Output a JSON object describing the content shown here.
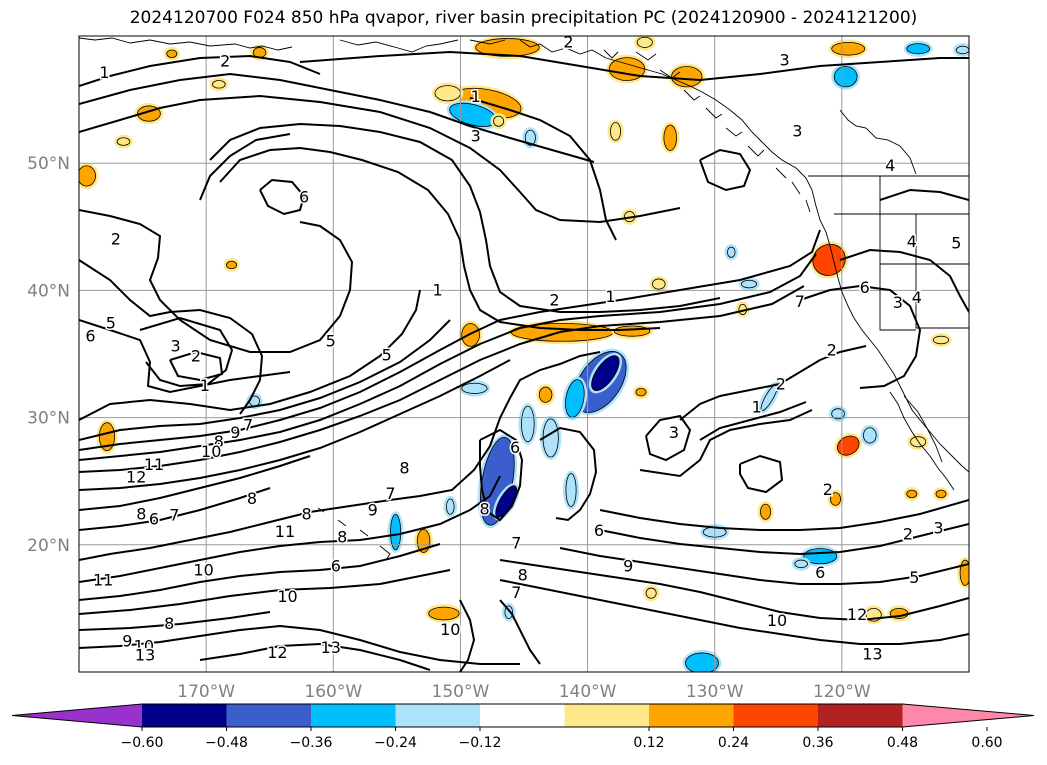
{
  "chart_data": {
    "type": "heatmap",
    "title": "2024120700 F024 850 hPa qvapor, river basin precipitation PC (2024120900 - 2024121200)",
    "map": {
      "lon_range": [
        -180,
        -110
      ],
      "lat_range": [
        10,
        60
      ],
      "lat_ticks": [
        "20°N",
        "30°N",
        "40°N",
        "50°N"
      ],
      "lat_tick_values": [
        20,
        30,
        40,
        50
      ],
      "lon_ticks": [
        "170°W",
        "160°W",
        "150°W",
        "140°W",
        "130°W",
        "120°W"
      ],
      "lon_tick_values": [
        -170,
        -160,
        -150,
        -140,
        -130,
        -120
      ],
      "grid": true,
      "coastlines": true
    },
    "contours": {
      "field": "850 hPa qvapor",
      "color": "#000000",
      "labels": [
        {
          "text": "1",
          "lon": -178,
          "lat": 56.7
        },
        {
          "text": "2",
          "lon": -168.5,
          "lat": 57.6
        },
        {
          "text": "2",
          "lon": -141.5,
          "lat": 59.1
        },
        {
          "text": "3",
          "lon": -124.5,
          "lat": 57.7
        },
        {
          "text": "1",
          "lon": -148.8,
          "lat": 54.8
        },
        {
          "text": "3",
          "lon": -148.8,
          "lat": 51.7
        },
        {
          "text": "3",
          "lon": -123.5,
          "lat": 52.1
        },
        {
          "text": "6",
          "lon": -162.3,
          "lat": 46.9
        },
        {
          "text": "2",
          "lon": -177.1,
          "lat": 43.6
        },
        {
          "text": "4",
          "lon": -116.2,
          "lat": 49.4
        },
        {
          "text": "4",
          "lon": -114.5,
          "lat": 43.4
        },
        {
          "text": "5",
          "lon": -111.0,
          "lat": 43.3
        },
        {
          "text": "1",
          "lon": -151.8,
          "lat": 39.6
        },
        {
          "text": "2",
          "lon": -142.6,
          "lat": 38.8
        },
        {
          "text": "1",
          "lon": -138.2,
          "lat": 39.1
        },
        {
          "text": "7",
          "lon": -123.3,
          "lat": 38.7
        },
        {
          "text": "6",
          "lon": -118.2,
          "lat": 39.8
        },
        {
          "text": "3",
          "lon": -115.6,
          "lat": 38.6
        },
        {
          "text": "4",
          "lon": -114.1,
          "lat": 39.0
        },
        {
          "text": "6",
          "lon": -179.1,
          "lat": 36.0
        },
        {
          "text": "5",
          "lon": -177.5,
          "lat": 37.0
        },
        {
          "text": "3",
          "lon": -172.4,
          "lat": 35.2
        },
        {
          "text": "2",
          "lon": -170.8,
          "lat": 34.4
        },
        {
          "text": "5",
          "lon": -160.2,
          "lat": 35.6
        },
        {
          "text": "5",
          "lon": -155.8,
          "lat": 34.5
        },
        {
          "text": "1",
          "lon": -170.1,
          "lat": 32.1
        },
        {
          "text": "2",
          "lon": -120.8,
          "lat": 34.9
        },
        {
          "text": "2",
          "lon": -124.8,
          "lat": 32.2
        },
        {
          "text": "1",
          "lon": -126.7,
          "lat": 30.4
        },
        {
          "text": "3",
          "lon": -133.2,
          "lat": 28.4
        },
        {
          "text": "9",
          "lon": -167.7,
          "lat": 28.4
        },
        {
          "text": "8",
          "lon": -169.0,
          "lat": 27.7
        },
        {
          "text": "10",
          "lon": -169.6,
          "lat": 26.9
        },
        {
          "text": "7",
          "lon": -166.7,
          "lat": 29.0
        },
        {
          "text": "11",
          "lon": -174.1,
          "lat": 25.9
        },
        {
          "text": "12",
          "lon": -175.5,
          "lat": 24.9
        },
        {
          "text": "8",
          "lon": -166.4,
          "lat": 23.2
        },
        {
          "text": "8",
          "lon": -154.4,
          "lat": 25.6
        },
        {
          "text": "8",
          "lon": -162.1,
          "lat": 22.0
        },
        {
          "text": "8",
          "lon": -175.1,
          "lat": 22.0
        },
        {
          "text": "6",
          "lon": -174.1,
          "lat": 21.6
        },
        {
          "text": "7",
          "lon": -172.5,
          "lat": 21.9
        },
        {
          "text": "6",
          "lon": -145.7,
          "lat": 27.2
        },
        {
          "text": "2",
          "lon": -121.1,
          "lat": 23.9
        },
        {
          "text": "7",
          "lon": -155.5,
          "lat": 23.6
        },
        {
          "text": "9",
          "lon": -156.9,
          "lat": 22.3
        },
        {
          "text": "8",
          "lon": -148.1,
          "lat": 22.4
        },
        {
          "text": "11",
          "lon": -163.8,
          "lat": 20.6
        },
        {
          "text": "8",
          "lon": -159.3,
          "lat": 20.2
        },
        {
          "text": "6",
          "lon": -139.1,
          "lat": 20.7
        },
        {
          "text": "7",
          "lon": -145.6,
          "lat": 19.7
        },
        {
          "text": "2",
          "lon": -114.8,
          "lat": 20.4
        },
        {
          "text": "3",
          "lon": -112.4,
          "lat": 20.9
        },
        {
          "text": "6",
          "lon": -159.8,
          "lat": 17.9
        },
        {
          "text": "10",
          "lon": -170.2,
          "lat": 17.6
        },
        {
          "text": "11",
          "lon": -178.1,
          "lat": 16.8
        },
        {
          "text": "9",
          "lon": -136.8,
          "lat": 17.9
        },
        {
          "text": "6",
          "lon": -121.7,
          "lat": 17.4
        },
        {
          "text": "5",
          "lon": -114.3,
          "lat": 17.0
        },
        {
          "text": "8",
          "lon": -145.1,
          "lat": 17.2
        },
        {
          "text": "7",
          "lon": -145.6,
          "lat": 15.8
        },
        {
          "text": "10",
          "lon": -163.6,
          "lat": 15.5
        },
        {
          "text": "10",
          "lon": -125.1,
          "lat": 13.6
        },
        {
          "text": "12",
          "lon": -118.8,
          "lat": 14.1
        },
        {
          "text": "8",
          "lon": -172.9,
          "lat": 13.4
        },
        {
          "text": "10",
          "lon": -150.8,
          "lat": 12.9
        },
        {
          "text": "9",
          "lon": -176.2,
          "lat": 12.0
        },
        {
          "text": "10",
          "lon": -174.9,
          "lat": 11.6
        },
        {
          "text": "13",
          "lon": -174.8,
          "lat": 10.9
        },
        {
          "text": "12",
          "lon": -164.4,
          "lat": 11.1
        },
        {
          "text": "13",
          "lon": -160.2,
          "lat": 11.5
        },
        {
          "text": "13",
          "lon": -117.6,
          "lat": 11.0
        }
      ]
    },
    "shading": {
      "field": "river basin precipitation PC",
      "colorbar": {
        "ticks": [
          "−0.60",
          "−0.48",
          "−0.36",
          "−0.24",
          "−0.12",
          "0.12",
          "0.24",
          "0.36",
          "0.48",
          "0.60"
        ],
        "levels": [
          -0.6,
          -0.48,
          -0.36,
          -0.24,
          -0.12,
          0.12,
          0.24,
          0.36,
          0.48,
          0.6
        ],
        "colors": [
          "#9932cc",
          "#00008b",
          "#3a5fcd",
          "#00bfff",
          "#aee2fb",
          "#ffffff",
          "#ffe88a",
          "#ffa500",
          "#ff4500",
          "#b22222",
          "#ff88aa"
        ],
        "extend": "both"
      },
      "blobs": [
        {
          "lon": -148,
          "lat": 54.7,
          "rx": 2.8,
          "ry": 1.1,
          "value": 0.3,
          "rot": 10
        },
        {
          "lon": -149,
          "lat": 53.8,
          "rx": 1.9,
          "ry": 0.8,
          "value": -0.3,
          "rot": 15
        },
        {
          "lon": -151,
          "lat": 55.5,
          "rx": 1.0,
          "ry": 0.6,
          "value": 0.15,
          "rot": 0
        },
        {
          "lon": -147,
          "lat": 53.3,
          "rx": 0.4,
          "ry": 0.4,
          "value": 0.15,
          "rot": 0
        },
        {
          "lon": -144.5,
          "lat": 52.0,
          "rx": 0.4,
          "ry": 0.6,
          "value": -0.15,
          "rot": 0
        },
        {
          "lon": -174.5,
          "lat": 53.9,
          "rx": 0.9,
          "ry": 0.6,
          "value": 0.3,
          "rot": 0
        },
        {
          "lon": -176.5,
          "lat": 51.7,
          "rx": 0.5,
          "ry": 0.3,
          "value": 0.15,
          "rot": 0
        },
        {
          "lon": -179.4,
          "lat": 49.0,
          "rx": 0.7,
          "ry": 0.8,
          "value": 0.33,
          "rot": 0
        },
        {
          "lon": -165.8,
          "lat": 58.7,
          "rx": 0.5,
          "ry": 0.4,
          "value": 0.3,
          "rot": 0
        },
        {
          "lon": -146.3,
          "lat": 59.1,
          "rx": 2.5,
          "ry": 0.7,
          "value": 0.3,
          "rot": 0
        },
        {
          "lon": -136.9,
          "lat": 57.4,
          "rx": 1.4,
          "ry": 0.9,
          "value": 0.33,
          "rot": 0
        },
        {
          "lon": -132.2,
          "lat": 56.8,
          "rx": 1.2,
          "ry": 0.8,
          "value": 0.3,
          "rot": 0
        },
        {
          "lon": -135.5,
          "lat": 59.5,
          "rx": 0.6,
          "ry": 0.4,
          "value": 0.15,
          "rot": 0
        },
        {
          "lon": -119.5,
          "lat": 59.0,
          "rx": 1.3,
          "ry": 0.5,
          "value": 0.3,
          "rot": 0
        },
        {
          "lon": -114,
          "lat": 59.0,
          "rx": 0.9,
          "ry": 0.4,
          "value": -0.3,
          "rot": 0
        },
        {
          "lon": -110.5,
          "lat": 58.9,
          "rx": 0.5,
          "ry": 0.3,
          "value": -0.15,
          "rot": 0
        },
        {
          "lon": -119.7,
          "lat": 56.8,
          "rx": 0.9,
          "ry": 0.8,
          "value": -0.3,
          "rot": 0
        },
        {
          "lon": -133.5,
          "lat": 52.0,
          "rx": 0.5,
          "ry": 1.0,
          "value": 0.3,
          "rot": 0
        },
        {
          "lon": -137.8,
          "lat": 52.5,
          "rx": 0.4,
          "ry": 0.7,
          "value": 0.15,
          "rot": 0
        },
        {
          "lon": -136.7,
          "lat": 45.8,
          "rx": 0.4,
          "ry": 0.4,
          "value": 0.15,
          "rot": 0
        },
        {
          "lon": -128.7,
          "lat": 43.0,
          "rx": 0.3,
          "ry": 0.4,
          "value": -0.15,
          "rot": 0
        },
        {
          "lon": -121.0,
          "lat": 42.4,
          "rx": 1.3,
          "ry": 1.2,
          "value": 0.4,
          "rot": -30
        },
        {
          "lon": -134.4,
          "lat": 40.5,
          "rx": 0.5,
          "ry": 0.4,
          "value": 0.2,
          "rot": 0
        },
        {
          "lon": -127.3,
          "lat": 40.5,
          "rx": 0.6,
          "ry": 0.3,
          "value": -0.2,
          "rot": 0
        },
        {
          "lon": -127.8,
          "lat": 38.5,
          "rx": 0.3,
          "ry": 0.4,
          "value": 0.15,
          "rot": 0
        },
        {
          "lon": -168,
          "lat": 42.0,
          "rx": 0.4,
          "ry": 0.3,
          "value": 0.25,
          "rot": 0
        },
        {
          "lon": -142.0,
          "lat": 36.7,
          "rx": 4.0,
          "ry": 0.7,
          "value": 0.3,
          "rot": 0
        },
        {
          "lon": -136.5,
          "lat": 36.8,
          "rx": 1.4,
          "ry": 0.4,
          "value": 0.25,
          "rot": 0
        },
        {
          "lon": -149.2,
          "lat": 36.5,
          "rx": 0.7,
          "ry": 0.9,
          "value": 0.25,
          "rot": 0
        },
        {
          "lon": -112.2,
          "lat": 36.1,
          "rx": 0.6,
          "ry": 0.3,
          "value": 0.2,
          "rot": 0
        },
        {
          "lon": -139.0,
          "lat": 32.8,
          "rx": 1.6,
          "ry": 2.7,
          "value": -0.45,
          "rot": 35
        },
        {
          "lon": -138.6,
          "lat": 33.5,
          "rx": 0.7,
          "ry": 1.6,
          "value": -0.55,
          "rot": 35
        },
        {
          "lon": -141.0,
          "lat": 31.5,
          "rx": 0.7,
          "ry": 1.5,
          "value": -0.3,
          "rot": 10
        },
        {
          "lon": -143.3,
          "lat": 31.8,
          "rx": 0.5,
          "ry": 0.6,
          "value": 0.3,
          "rot": 0
        },
        {
          "lon": -144.7,
          "lat": 29.5,
          "rx": 0.5,
          "ry": 1.4,
          "value": -0.15,
          "rot": 0
        },
        {
          "lon": -142.9,
          "lat": 28.4,
          "rx": 0.6,
          "ry": 1.5,
          "value": -0.2,
          "rot": 0
        },
        {
          "lon": -141.3,
          "lat": 24.3,
          "rx": 0.4,
          "ry": 1.3,
          "value": -0.2,
          "rot": 0
        },
        {
          "lon": -147.1,
          "lat": 25.0,
          "rx": 1.2,
          "ry": 3.5,
          "value": -0.42,
          "rot": 10
        },
        {
          "lon": -146.4,
          "lat": 23.4,
          "rx": 0.5,
          "ry": 1.4,
          "value": -0.55,
          "rot": 30
        },
        {
          "lon": -150.8,
          "lat": 23.0,
          "rx": 0.3,
          "ry": 0.6,
          "value": -0.2,
          "rot": 0
        },
        {
          "lon": -155.1,
          "lat": 21.0,
          "rx": 0.4,
          "ry": 1.4,
          "value": -0.3,
          "rot": 0
        },
        {
          "lon": -152.9,
          "lat": 20.3,
          "rx": 0.5,
          "ry": 0.9,
          "value": 0.3,
          "rot": 0
        },
        {
          "lon": -135.8,
          "lat": 32.0,
          "rx": 0.4,
          "ry": 0.3,
          "value": 0.25,
          "rot": 0
        },
        {
          "lon": -148.9,
          "lat": 32.3,
          "rx": 1.0,
          "ry": 0.4,
          "value": -0.2,
          "rot": 0
        },
        {
          "lon": -177.8,
          "lat": 28.5,
          "rx": 0.6,
          "ry": 1.1,
          "value": 0.35,
          "rot": 0
        },
        {
          "lon": -166.2,
          "lat": 31.3,
          "rx": 0.4,
          "ry": 0.4,
          "value": -0.15,
          "rot": 0
        },
        {
          "lon": -120.3,
          "lat": 30.3,
          "rx": 0.5,
          "ry": 0.4,
          "value": -0.2,
          "rot": 0
        },
        {
          "lon": -117.8,
          "lat": 28.6,
          "rx": 0.5,
          "ry": 0.6,
          "value": -0.15,
          "rot": 0
        },
        {
          "lon": -125.7,
          "lat": 31.6,
          "rx": 0.3,
          "ry": 1.2,
          "value": -0.15,
          "rot": 30
        },
        {
          "lon": -119.5,
          "lat": 27.8,
          "rx": 0.9,
          "ry": 0.7,
          "value": 0.4,
          "rot": -30
        },
        {
          "lon": -114.0,
          "lat": 28.1,
          "rx": 0.6,
          "ry": 0.4,
          "value": 0.2,
          "rot": 0
        },
        {
          "lon": -120.5,
          "lat": 23.6,
          "rx": 0.4,
          "ry": 0.5,
          "value": 0.3,
          "rot": 0
        },
        {
          "lon": -126.0,
          "lat": 22.6,
          "rx": 0.4,
          "ry": 0.6,
          "value": 0.25,
          "rot": 0
        },
        {
          "lon": -114.5,
          "lat": 24.0,
          "rx": 0.4,
          "ry": 0.3,
          "value": 0.3,
          "rot": 0
        },
        {
          "lon": -112.2,
          "lat": 24.0,
          "rx": 0.4,
          "ry": 0.3,
          "value": 0.25,
          "rot": 0
        },
        {
          "lon": -130.0,
          "lat": 21.0,
          "rx": 0.9,
          "ry": 0.4,
          "value": -0.2,
          "rot": 0
        },
        {
          "lon": -121.7,
          "lat": 19.1,
          "rx": 1.3,
          "ry": 0.6,
          "value": -0.3,
          "rot": 0
        },
        {
          "lon": -123.2,
          "lat": 18.5,
          "rx": 0.5,
          "ry": 0.3,
          "value": -0.15,
          "rot": 0
        },
        {
          "lon": -110.3,
          "lat": 17.8,
          "rx": 0.4,
          "ry": 1.0,
          "value": 0.35,
          "rot": 0
        },
        {
          "lon": -151.3,
          "lat": 14.6,
          "rx": 1.2,
          "ry": 0.5,
          "value": 0.3,
          "rot": 0
        },
        {
          "lon": -135.0,
          "lat": 16.2,
          "rx": 0.4,
          "ry": 0.4,
          "value": 0.2,
          "rot": 0
        },
        {
          "lon": -117.5,
          "lat": 14.5,
          "rx": 0.6,
          "ry": 0.5,
          "value": 0.2,
          "rot": 0
        },
        {
          "lon": -115.5,
          "lat": 14.6,
          "rx": 0.7,
          "ry": 0.4,
          "value": 0.25,
          "rot": 0
        },
        {
          "lon": -131.0,
          "lat": 10.7,
          "rx": 1.3,
          "ry": 0.8,
          "value": -0.3,
          "rot": 0
        },
        {
          "lon": -146.2,
          "lat": 14.7,
          "rx": 0.3,
          "ry": 0.5,
          "value": -0.2,
          "rot": 0
        },
        {
          "lon": -172.7,
          "lat": 58.6,
          "rx": 0.4,
          "ry": 0.3,
          "value": 0.25,
          "rot": 0
        },
        {
          "lon": -169.0,
          "lat": 56.2,
          "rx": 0.5,
          "ry": 0.3,
          "value": 0.2,
          "rot": 0
        }
      ]
    }
  }
}
